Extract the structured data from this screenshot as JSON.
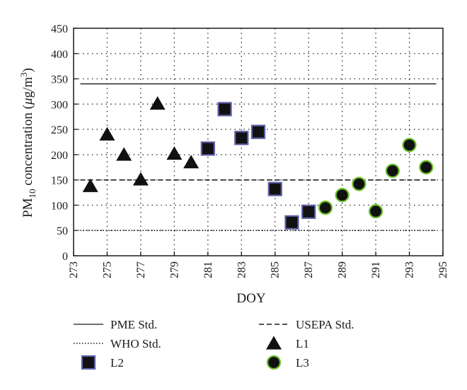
{
  "chart_data": {
    "type": "scatter",
    "title": "",
    "xlabel": "DOY",
    "ylabel": {
      "prefix": "PM",
      "subscript": "10",
      "middle": " concentration (",
      "mu": "μ",
      "unit": "g/m",
      "superscript": "3",
      "suffix": ")"
    },
    "xlim": [
      273,
      295
    ],
    "ylim": [
      0,
      450
    ],
    "x_ticks": [
      "273",
      "275",
      "277",
      "279",
      "281",
      "283",
      "285",
      "287",
      "289",
      "291",
      "293",
      "295"
    ],
    "y_ticks": [
      "0",
      "50",
      "100",
      "150",
      "200",
      "250",
      "300",
      "350",
      "400",
      "450"
    ],
    "grid": true,
    "reference_lines": [
      {
        "name": "PME Std.",
        "y": 340,
        "style": "solid",
        "x_range": [
          273.4,
          294.6
        ]
      },
      {
        "name": "USEPA Std.",
        "y": 150,
        "style": "dashed",
        "x_range": [
          273.4,
          294.6
        ]
      },
      {
        "name": "WHO Std.",
        "y": 50,
        "style": "dotted",
        "x_range": [
          273.4,
          294.6
        ]
      }
    ],
    "series": [
      {
        "name": "L1",
        "marker": "triangle",
        "color": "#111111",
        "points": [
          [
            274,
            138
          ],
          [
            275,
            240
          ],
          [
            276,
            200
          ],
          [
            277,
            151
          ],
          [
            278,
            301
          ],
          [
            279,
            202
          ],
          [
            280,
            185
          ]
        ]
      },
      {
        "name": "L2",
        "marker": "square",
        "color": "#111111",
        "edge": "#5b5ea6",
        "points": [
          [
            281,
            212
          ],
          [
            282,
            290
          ],
          [
            283,
            233
          ],
          [
            284,
            245
          ],
          [
            285,
            132
          ],
          [
            286,
            66
          ],
          [
            287,
            87
          ]
        ]
      },
      {
        "name": "L3",
        "marker": "circle",
        "color": "#111111",
        "edge": "#6bbf2a",
        "points": [
          [
            288,
            95
          ],
          [
            289,
            120
          ],
          [
            290,
            142
          ],
          [
            291,
            88
          ],
          [
            292,
            168
          ],
          [
            293,
            219
          ],
          [
            294,
            175
          ]
        ]
      }
    ],
    "legend": {
      "placement": "bottom",
      "items": [
        {
          "label": "PME Std.",
          "kind": "solid"
        },
        {
          "label": "USEPA Std.",
          "kind": "dashed"
        },
        {
          "label": "WHO Std.",
          "kind": "dotted"
        },
        {
          "label": "L1",
          "kind": "triangle"
        },
        {
          "label": "L2",
          "kind": "square"
        },
        {
          "label": "L3",
          "kind": "circle"
        }
      ]
    }
  }
}
